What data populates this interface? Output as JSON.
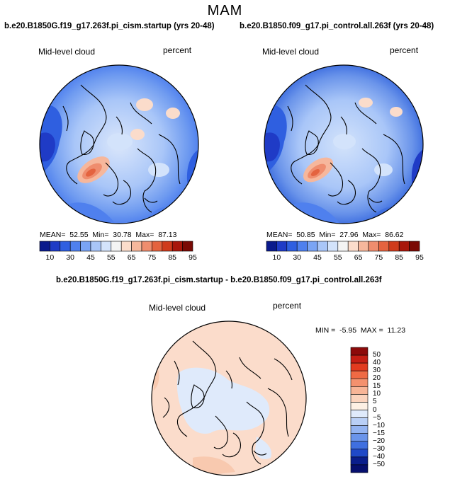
{
  "title": "MAM",
  "colorbar_top": {
    "labels": [
      "10",
      "30",
      "45",
      "55",
      "65",
      "75",
      "85",
      "95"
    ],
    "colors": [
      "#0a1a8c",
      "#1f3bc6",
      "#2f5fe0",
      "#4f80ee",
      "#7aa4f4",
      "#a9c6f8",
      "#d3e3fb",
      "#f4f4f4",
      "#fbdccb",
      "#f6b79c",
      "#ef8d6e",
      "#e4633f",
      "#cf3b1c",
      "#a8170b",
      "#7a0a05"
    ]
  },
  "colorbar_diff": {
    "labels": [
      "50",
      "40",
      "30",
      "20",
      "15",
      "10",
      "5",
      "0",
      "−5",
      "−10",
      "−15",
      "−20",
      "−30",
      "−40",
      "−50"
    ],
    "colors": [
      "#8c0a0a",
      "#c41e14",
      "#e23b1f",
      "#ef6a44",
      "#f4916e",
      "#f8b597",
      "#fbd3bd",
      "#fdf0e4",
      "#dfeafb",
      "#b9cff6",
      "#93b3f1",
      "#6a94ea",
      "#3f6fe0",
      "#1f49c8",
      "#0a1e8c"
    ]
  },
  "panels": [
    {
      "title": "b.e20.B1850G.f19_g17.263f.pi_cism.startup (yrs 20-48)",
      "variable": "Mid-level cloud",
      "units": "percent",
      "stats": "MEAN=  52.55  Min=  30.78  Max=  87.13"
    },
    {
      "title": "b.e20.B1850.f09_g17.pi_control.all.263f (yrs 20-48)",
      "variable": "Mid-level cloud",
      "units": "percent",
      "stats": "MEAN=  50.85  Min=  27.96  Max=  86.62"
    },
    {
      "title": "b.e20.B1850G.f19_g17.263f.pi_cism.startup - b.e20.B1850.f09_g17.pi_control.all.263f",
      "variable": "Mid-level cloud",
      "units": "percent",
      "stats": "MIN =  -5.95  MAX =  11.23"
    }
  ]
}
